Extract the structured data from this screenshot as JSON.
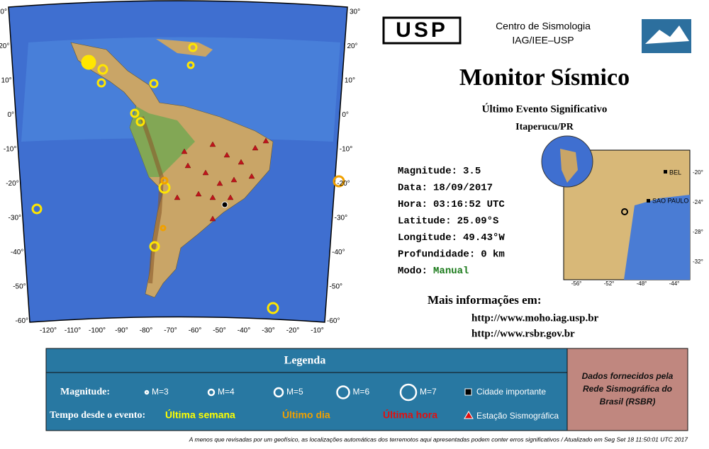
{
  "header": {
    "logo": "USP",
    "institution": "Centro de Sismologia",
    "department": "IAG/IEE–USP"
  },
  "title": "Monitor Sísmico",
  "subtitle": "Último Evento Significativo",
  "location": "Itaperucu/PR",
  "event": {
    "rows": [
      [
        "Magnitude:",
        "3.5"
      ],
      [
        "Data:",
        "18/09/2017"
      ],
      [
        "Hora:",
        "03:16:52 UTC"
      ],
      [
        "Latitude:",
        "25.09°S"
      ],
      [
        "Longitude:",
        "49.43°W"
      ],
      [
        "Profundidade:",
        "0 km"
      ],
      [
        "Modo:",
        "Manual"
      ]
    ]
  },
  "more_info": {
    "label": "Mais informações em:",
    "links": [
      "http://www.moho.iag.usp.br",
      "http://www.rsbr.gov.br"
    ]
  },
  "map": {
    "lat_labels": [
      "30°",
      "20°",
      "10°",
      "0°",
      "-10°",
      "-20°",
      "-30°",
      "-40°",
      "-50°",
      "-60°"
    ],
    "lon_labels": [
      "-120°",
      "-110°",
      "-100°",
      "-90°",
      "-80°",
      "-70°",
      "-60°",
      "-50°",
      "-40°",
      "-30°",
      "-20°",
      "-10°"
    ]
  },
  "inset": {
    "lat_labels": [
      "-20°",
      "-24°",
      "-28°",
      "-32°"
    ],
    "lon_labels": [
      "-56°",
      "-52°",
      "-48°",
      "-44°"
    ],
    "cities": [
      "BEL",
      "SAO PAULO"
    ]
  },
  "legend": {
    "title": "Legenda",
    "magnitude_label": "Magnitude:",
    "magnitudes": [
      "M=3",
      "M=4",
      "M=5",
      "M=6",
      "M=7"
    ],
    "city": "Cidade importante",
    "time_label": "Tempo desde o evento:",
    "periods": [
      "Última semana",
      "Último dia",
      "Última hora"
    ],
    "station": "Estação Sismográfica",
    "source": "Dados fornecidos pela Rede Sismográfica do Brasil (RSBR)"
  },
  "footer": "A menos que revisadas por um geofísico, as localizações automáticas dos terremotos aqui apresentadas podem conter erros significativos / Atualizado em Seg Set 18 11:50:01 UTC 2017"
}
